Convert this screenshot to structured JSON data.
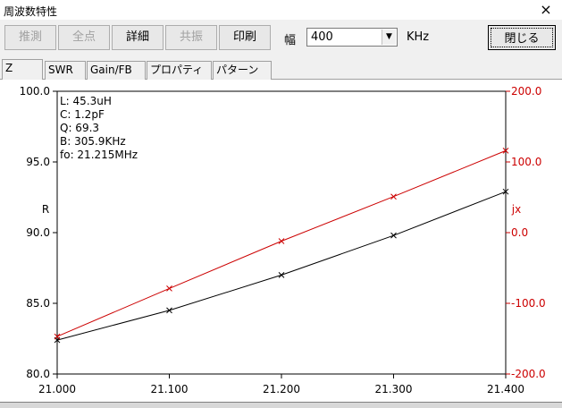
{
  "window": {
    "title": "周波数特性",
    "close_symbol": "×"
  },
  "toolbar": {
    "buttons": [
      {
        "label": "推測",
        "enabled": false
      },
      {
        "label": "全点",
        "enabled": false
      },
      {
        "label": "詳細",
        "enabled": true
      },
      {
        "label": "共振",
        "enabled": false
      },
      {
        "label": "印刷",
        "enabled": true
      }
    ],
    "width_label": "幅",
    "width_value": "400",
    "width_unit": "KHz",
    "close_label": "閉じる"
  },
  "tabs": [
    {
      "label": "Z",
      "active": true
    },
    {
      "label": "SWR",
      "active": false
    },
    {
      "label": "Gain/FB",
      "active": false
    },
    {
      "label": "プロパティ",
      "active": false
    },
    {
      "label": "パターン",
      "active": false
    }
  ],
  "info": [
    "L: 45.3uH",
    "C: 1.2pF",
    "Q: 69.3",
    "B: 305.9KHz",
    "fo: 21.215MHz"
  ],
  "chart_data": {
    "type": "line",
    "x": [
      21.0,
      21.1,
      21.2,
      21.3,
      21.4
    ],
    "x_tick_labels": [
      "21.000",
      "21.100",
      "21.200",
      "21.300",
      "21.400"
    ],
    "xlim": [
      21.0,
      21.4
    ],
    "y_left": {
      "label": "R",
      "lim": [
        80.0,
        100.0
      ],
      "tick_values": [
        80,
        85,
        90,
        95,
        100
      ],
      "tick_labels": [
        "80.0",
        "85.0",
        "90.0",
        "95.0",
        "100.0"
      ]
    },
    "y_right": {
      "label": "jx",
      "lim": [
        -200.0,
        200.0
      ],
      "tick_values": [
        -200,
        -100,
        0,
        100,
        200
      ],
      "tick_labels": [
        "-200.0",
        "-100.0",
        "0.0",
        "100.0",
        "200.0"
      ]
    },
    "series": [
      {
        "axis": "left",
        "color": "#000000",
        "values": [
          82.4,
          84.5,
          87.0,
          89.8,
          92.9
        ]
      },
      {
        "axis": "right",
        "color": "#cc0000",
        "values": [
          -147,
          -79,
          -12,
          51,
          116
        ]
      }
    ],
    "grid": false
  }
}
